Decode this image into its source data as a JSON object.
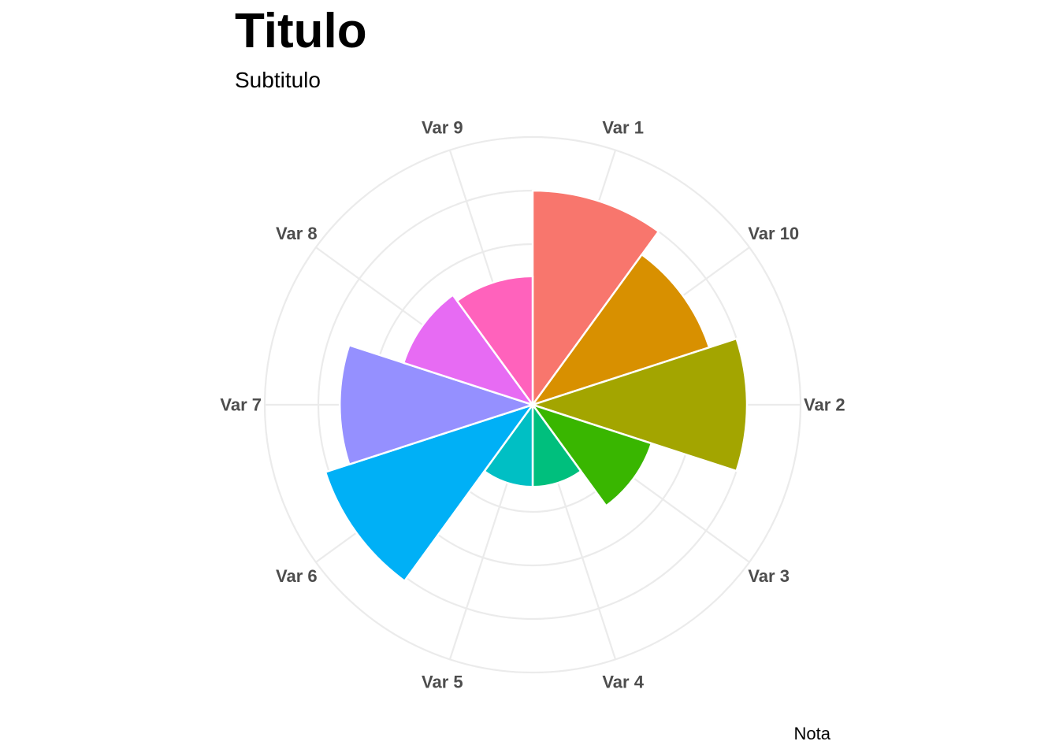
{
  "chart_data": {
    "type": "polar-bar",
    "title": "Titulo",
    "subtitle": "Subtitulo",
    "caption": "Nota",
    "grid": true,
    "legend": "none",
    "rlim": [
      0,
      75
    ],
    "gridlines": [
      15,
      30,
      45,
      60,
      75
    ],
    "categories": [
      "Var 1",
      "Var 10",
      "Var 2",
      "Var 3",
      "Var 4",
      "Var 5",
      "Var 6",
      "Var 7",
      "Var 8",
      "Var 9"
    ],
    "values": [
      60,
      52,
      60,
      35,
      23,
      23,
      61,
      54,
      38,
      36
    ],
    "colors": [
      "#F8766D",
      "#D89000",
      "#A3A500",
      "#39B600",
      "#00BF7D",
      "#00BFC4",
      "#00B0F6",
      "#9590FF",
      "#E76BF3",
      "#FF62BC"
    ]
  }
}
